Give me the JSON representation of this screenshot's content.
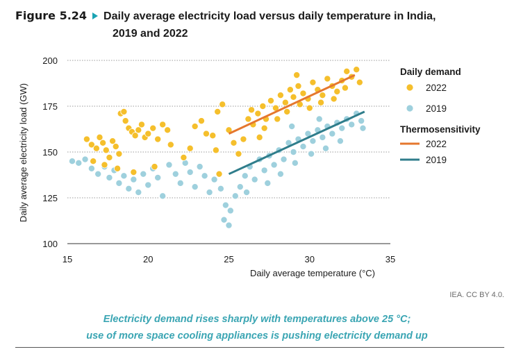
{
  "figure": {
    "label": "Figure 5.24",
    "title_line1": "Daily average electricity load versus daily temperature in India,",
    "title_line2": "2019 and 2022"
  },
  "credit": "IEA. CC BY 4.0.",
  "caption": {
    "line1": "Electricity demand rises sharply with temperatures above 25 °C;",
    "line2": "use of more space cooling appliances is pushing electricity demand up"
  },
  "colors": {
    "dots_2022": "#f5bf2c",
    "dots_2019": "#9ed0dd",
    "line_2022": "#e5772e",
    "line_2019": "#2f7d8b",
    "grid": "#9a9a9a"
  },
  "chart_data": {
    "type": "scatter",
    "xlabel": "Daily average temperature (°C)",
    "ylabel": "Daily average electricity load (GW)",
    "xlim": [
      15,
      35
    ],
    "ylim": [
      100,
      200
    ],
    "xticks": [
      15,
      20,
      25,
      30,
      35
    ],
    "yticks": [
      100,
      125,
      150,
      175,
      200
    ],
    "grid": "horizontal-dotted",
    "legend_placement": "right",
    "legend": {
      "group1_title": "Daily demand",
      "group2_title": "Thermosensitivity"
    },
    "series": [
      {
        "name": "2022",
        "group": "Daily demand",
        "kind": "points",
        "points": [
          [
            16.2,
            157
          ],
          [
            16.5,
            154
          ],
          [
            16.8,
            152
          ],
          [
            17.0,
            158
          ],
          [
            17.2,
            155
          ],
          [
            17.4,
            151
          ],
          [
            17.6,
            147
          ],
          [
            17.8,
            156
          ],
          [
            18.0,
            153
          ],
          [
            18.2,
            149
          ],
          [
            18.3,
            171
          ],
          [
            18.5,
            172
          ],
          [
            18.6,
            167
          ],
          [
            18.8,
            163
          ],
          [
            19.0,
            161
          ],
          [
            19.2,
            159
          ],
          [
            19.4,
            162
          ],
          [
            19.6,
            165
          ],
          [
            19.8,
            158
          ],
          [
            20.0,
            160
          ],
          [
            20.3,
            163
          ],
          [
            20.6,
            157
          ],
          [
            20.9,
            165
          ],
          [
            21.2,
            162
          ],
          [
            21.4,
            154
          ],
          [
            16.6,
            145
          ],
          [
            17.3,
            143
          ],
          [
            18.1,
            141
          ],
          [
            19.1,
            139
          ],
          [
            20.4,
            142
          ],
          [
            22.2,
            147
          ],
          [
            22.6,
            152
          ],
          [
            22.9,
            164
          ],
          [
            23.3,
            167
          ],
          [
            23.6,
            160
          ],
          [
            24.0,
            159
          ],
          [
            24.3,
            172
          ],
          [
            24.6,
            176
          ],
          [
            24.2,
            151
          ],
          [
            24.4,
            138
          ],
          [
            25.0,
            162
          ],
          [
            25.3,
            155
          ],
          [
            25.6,
            149
          ],
          [
            25.9,
            157
          ],
          [
            26.2,
            168
          ],
          [
            26.5,
            165
          ],
          [
            26.8,
            171
          ],
          [
            27.1,
            175
          ],
          [
            27.3,
            168
          ],
          [
            27.6,
            178
          ],
          [
            27.9,
            174
          ],
          [
            28.2,
            181
          ],
          [
            28.5,
            177
          ],
          [
            28.8,
            184
          ],
          [
            29.0,
            180
          ],
          [
            29.3,
            186
          ],
          [
            29.6,
            182
          ],
          [
            29.9,
            179
          ],
          [
            30.2,
            188
          ],
          [
            30.5,
            184
          ],
          [
            30.8,
            181
          ],
          [
            31.1,
            190
          ],
          [
            31.4,
            186
          ],
          [
            31.7,
            183
          ],
          [
            32.0,
            189
          ],
          [
            32.3,
            194
          ],
          [
            32.6,
            191
          ],
          [
            32.9,
            195
          ],
          [
            33.1,
            188
          ],
          [
            26.4,
            173
          ],
          [
            27.2,
            163
          ],
          [
            28.0,
            168
          ],
          [
            28.6,
            172
          ],
          [
            29.4,
            176
          ],
          [
            30.0,
            174
          ],
          [
            30.7,
            177
          ],
          [
            31.5,
            179
          ],
          [
            32.2,
            185
          ],
          [
            26.9,
            158
          ],
          [
            29.2,
            192
          ]
        ]
      },
      {
        "name": "2019",
        "group": "Daily demand",
        "kind": "points",
        "points": [
          [
            15.3,
            145
          ],
          [
            15.7,
            144
          ],
          [
            16.1,
            146
          ],
          [
            16.5,
            141
          ],
          [
            16.9,
            138
          ],
          [
            17.3,
            142
          ],
          [
            17.6,
            136
          ],
          [
            17.9,
            140
          ],
          [
            18.2,
            133
          ],
          [
            18.5,
            137
          ],
          [
            18.8,
            130
          ],
          [
            19.1,
            135
          ],
          [
            19.4,
            128
          ],
          [
            19.7,
            138
          ],
          [
            20.0,
            132
          ],
          [
            20.3,
            141
          ],
          [
            20.6,
            136
          ],
          [
            20.9,
            126
          ],
          [
            21.3,
            143
          ],
          [
            21.7,
            138
          ],
          [
            22.0,
            133
          ],
          [
            22.3,
            144
          ],
          [
            22.6,
            139
          ],
          [
            22.9,
            131
          ],
          [
            23.2,
            142
          ],
          [
            23.5,
            137
          ],
          [
            23.8,
            128
          ],
          [
            24.1,
            135
          ],
          [
            24.5,
            130
          ],
          [
            24.7,
            113
          ],
          [
            24.8,
            121
          ],
          [
            25.0,
            110
          ],
          [
            25.1,
            118
          ],
          [
            25.4,
            126
          ],
          [
            25.7,
            131
          ],
          [
            26.0,
            137
          ],
          [
            26.3,
            142
          ],
          [
            26.6,
            135
          ],
          [
            26.9,
            146
          ],
          [
            27.2,
            140
          ],
          [
            27.5,
            148
          ],
          [
            27.8,
            143
          ],
          [
            28.1,
            151
          ],
          [
            28.4,
            146
          ],
          [
            28.7,
            155
          ],
          [
            29.0,
            150
          ],
          [
            29.3,
            157
          ],
          [
            29.6,
            153
          ],
          [
            29.9,
            160
          ],
          [
            30.2,
            156
          ],
          [
            30.5,
            162
          ],
          [
            30.8,
            158
          ],
          [
            31.1,
            164
          ],
          [
            31.4,
            160
          ],
          [
            31.7,
            166
          ],
          [
            32.0,
            163
          ],
          [
            32.3,
            168
          ],
          [
            32.6,
            165
          ],
          [
            32.9,
            171
          ],
          [
            33.2,
            167
          ],
          [
            27.4,
            133
          ],
          [
            28.2,
            138
          ],
          [
            29.1,
            144
          ],
          [
            30.1,
            149
          ],
          [
            31.0,
            152
          ],
          [
            31.9,
            156
          ],
          [
            33.3,
            163
          ],
          [
            26.1,
            128
          ],
          [
            28.9,
            164
          ],
          [
            30.6,
            168
          ]
        ]
      },
      {
        "name": "2022",
        "group": "Thermosensitivity",
        "kind": "line",
        "points": [
          [
            25,
            160
          ],
          [
            32.8,
            192
          ]
        ]
      },
      {
        "name": "2019",
        "group": "Thermosensitivity",
        "kind": "line",
        "points": [
          [
            25,
            138
          ],
          [
            33.4,
            172
          ]
        ]
      }
    ]
  }
}
